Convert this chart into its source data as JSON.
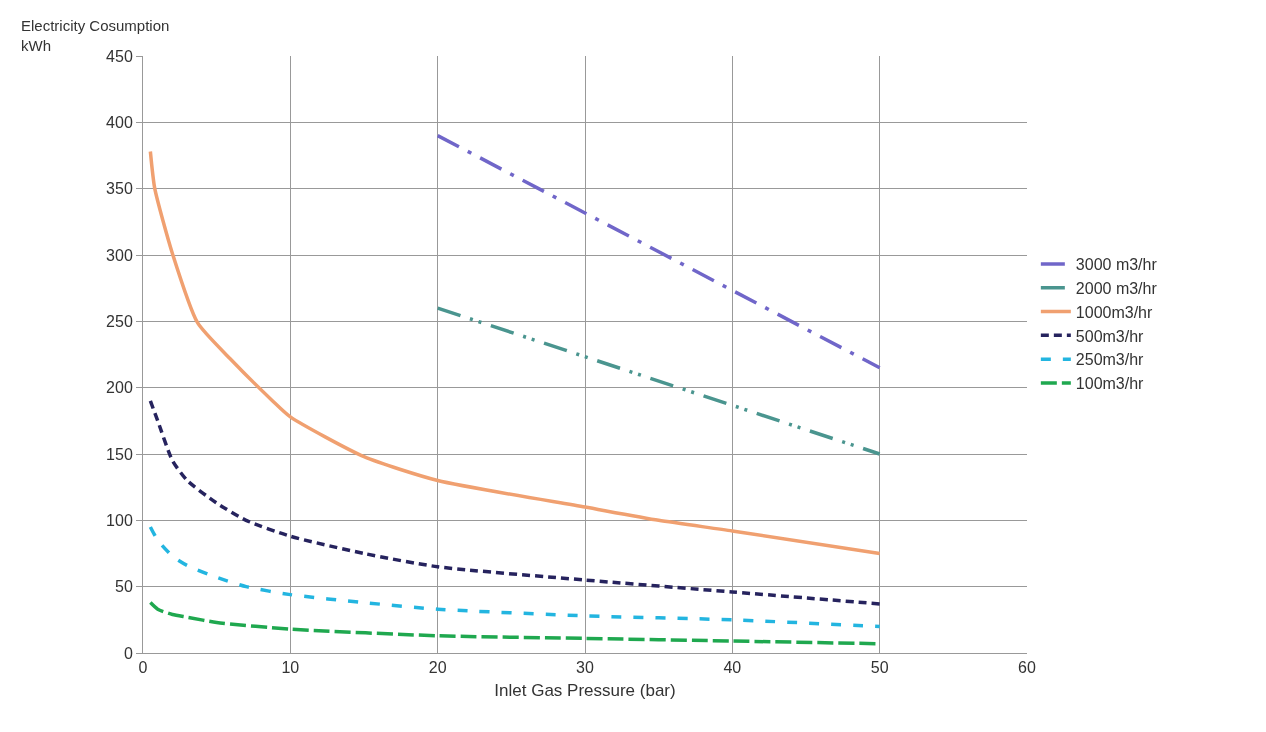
{
  "chart_data": {
    "type": "line",
    "xlabel": "Inlet Gas Pressure (bar)",
    "ylabel": "Electricity Cosumption\nkWh",
    "xlim": [
      0,
      60
    ],
    "xticks": [
      0,
      10,
      20,
      30,
      40,
      50,
      60
    ],
    "ylim": [
      0,
      450
    ],
    "yticks": [
      0,
      50,
      100,
      150,
      200,
      250,
      300,
      350,
      400,
      450
    ],
    "grid": true,
    "legend": "right",
    "marker": "none",
    "series": [
      {
        "name": "3000 m3/hr",
        "color": "#7066c9",
        "line_style": "dashed",
        "x": [
          20,
          50
        ],
        "values": [
          390,
          215
        ]
      },
      {
        "name": "2000 m3/hr",
        "color": "#4a958f",
        "line_style": "dashed",
        "x": [
          20,
          50
        ],
        "values": [
          260,
          150
        ]
      },
      {
        "name": "1000m3/hr",
        "color": "#f0a070",
        "line_style": "solid",
        "x": [
          0.5,
          0.8,
          2,
          3.7,
          5.9,
          8.8,
          10,
          15,
          20,
          30,
          35,
          40,
          50
        ],
        "values": [
          378,
          350,
          301,
          249,
          222,
          190,
          178,
          148,
          130,
          110,
          100,
          92,
          75
        ]
      },
      {
        "name": "500m3/hr",
        "color": "#26235e",
        "line_style": "dashed",
        "x": [
          0.5,
          1,
          2,
          3,
          5,
          7,
          10,
          15,
          20,
          30,
          40,
          50
        ],
        "values": [
          190,
          175,
          145,
          130,
          113,
          100,
          88,
          75,
          65,
          55,
          46,
          37
        ]
      },
      {
        "name": "250m3/hr",
        "color": "#23b5e0",
        "line_style": "dashed",
        "x": [
          0.5,
          1,
          2,
          3,
          5,
          7,
          10,
          15,
          20,
          30,
          40,
          50
        ],
        "values": [
          95,
          85,
          73,
          66,
          57,
          50,
          44,
          38,
          33,
          28,
          25,
          20
        ]
      },
      {
        "name": "100m3/hr",
        "color": "#1fa84f",
        "line_style": "dashed",
        "x": [
          0.5,
          1,
          2,
          3,
          5,
          10,
          20,
          30,
          40,
          50
        ],
        "values": [
          38,
          33,
          29,
          27,
          23,
          18,
          13,
          11,
          9,
          7
        ]
      }
    ]
  }
}
